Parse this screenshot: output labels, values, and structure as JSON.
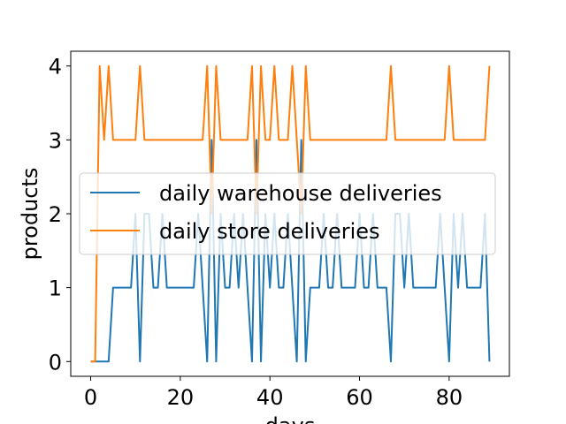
{
  "chart_data": {
    "type": "line",
    "title": "",
    "xlabel": "days",
    "ylabel": "products",
    "xlim": [
      -4.45,
      93.45
    ],
    "ylim": [
      -0.2,
      4.2
    ],
    "xticks": [
      0,
      20,
      40,
      60,
      80
    ],
    "yticks": [
      0,
      1,
      2,
      3,
      4
    ],
    "grid": false,
    "legend": "center-left",
    "x": [
      0,
      1,
      2,
      3,
      4,
      5,
      6,
      7,
      8,
      9,
      10,
      11,
      12,
      13,
      14,
      15,
      16,
      17,
      18,
      19,
      20,
      21,
      22,
      23,
      24,
      25,
      26,
      27,
      28,
      29,
      30,
      31,
      32,
      33,
      34,
      35,
      36,
      37,
      38,
      39,
      40,
      41,
      42,
      43,
      44,
      45,
      46,
      47,
      48,
      49,
      50,
      51,
      52,
      53,
      54,
      55,
      56,
      57,
      58,
      59,
      60,
      61,
      62,
      63,
      64,
      65,
      66,
      67,
      68,
      69,
      70,
      71,
      72,
      73,
      74,
      75,
      76,
      77,
      78,
      79,
      80,
      81,
      82,
      83,
      84,
      85,
      86,
      87,
      88,
      89
    ],
    "series": [
      {
        "name": "daily warehouse deliveries",
        "color": "#1f77b4",
        "values": [
          0,
          0,
          0,
          0,
          0,
          1,
          1,
          1,
          1,
          1,
          2,
          0,
          2,
          2,
          1,
          1,
          2,
          1,
          1,
          1,
          1,
          1,
          1,
          1,
          2,
          1,
          0,
          3,
          0,
          2,
          1,
          1,
          2,
          1,
          2,
          1,
          0,
          3,
          0,
          2,
          1,
          2,
          1,
          1,
          2,
          1,
          0,
          3,
          0,
          1,
          1,
          1,
          2,
          1,
          1,
          2,
          1,
          1,
          1,
          1,
          2,
          1,
          1,
          2,
          1,
          1,
          1,
          0,
          2,
          2,
          1,
          2,
          1,
          1,
          1,
          1,
          1,
          1,
          2,
          1,
          0,
          2,
          1,
          2,
          1,
          1,
          1,
          1,
          2,
          0
        ]
      },
      {
        "name": "daily store deliveries",
        "color": "#ff7f0e",
        "values": [
          0,
          0,
          4,
          3,
          4,
          3,
          3,
          3,
          3,
          3,
          3,
          4,
          3,
          3,
          3,
          3,
          3,
          3,
          3,
          3,
          3,
          3,
          3,
          3,
          3,
          3,
          4,
          2,
          4,
          3,
          3,
          3,
          3,
          3,
          3,
          3,
          4,
          2,
          4,
          3,
          3,
          4,
          3,
          3,
          3,
          4,
          3,
          2,
          4,
          3,
          3,
          3,
          3,
          3,
          3,
          3,
          3,
          3,
          3,
          3,
          3,
          3,
          3,
          3,
          3,
          3,
          3,
          4,
          3,
          3,
          3,
          3,
          3,
          3,
          3,
          3,
          3,
          3,
          3,
          3,
          4,
          3,
          3,
          3,
          3,
          3,
          3,
          3,
          3,
          4
        ]
      }
    ]
  }
}
